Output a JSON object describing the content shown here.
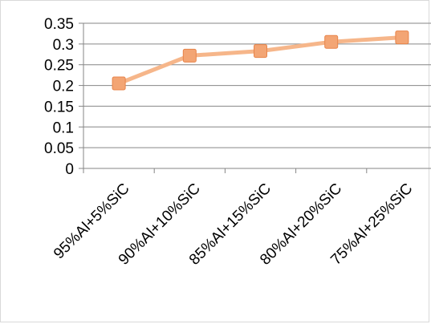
{
  "chart_data": {
    "type": "line",
    "categories": [
      "95%Al+5%SiC",
      "90%Al+10%SiC",
      "85%Al+15%SiC",
      "80%Al+20%SiC",
      "75%Al+25%SiC"
    ],
    "series": [
      {
        "values": [
          0.205,
          0.272,
          0.283,
          0.305,
          0.316
        ]
      }
    ],
    "ylim": [
      0,
      0.35
    ],
    "yticks": [
      "0",
      "0.05",
      "0.1",
      "0.15",
      "0.2",
      "0.25",
      "0.3",
      "0.35"
    ],
    "grid": true,
    "legend": "none",
    "colors": {
      "line": "#f6b68a",
      "marker_fill": "#f3a574",
      "marker_edge": "#e8844a",
      "grid": "#868686",
      "axis": "#868686"
    }
  }
}
